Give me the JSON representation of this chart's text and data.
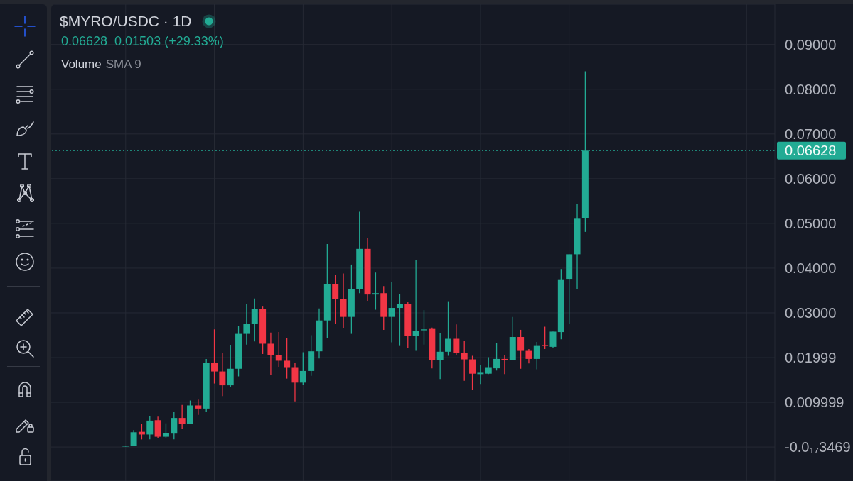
{
  "chart_data": {
    "type": "candlestick",
    "title": "$MYRO/USDC · 1D",
    "annotations": [
      "0.06628",
      "0.01503 (+29.33%)",
      "Volume",
      "SMA 9"
    ],
    "categories": [
      null,
      null,
      null,
      null,
      null,
      null,
      null,
      null,
      null,
      null,
      null,
      null,
      null,
      null,
      null,
      null,
      null,
      null,
      null,
      null,
      null,
      null,
      null,
      null,
      null,
      null,
      null,
      null,
      null,
      null,
      null,
      null,
      null,
      null,
      null,
      null,
      null,
      null,
      null,
      null,
      null,
      null,
      null,
      null,
      null,
      null,
      null,
      null,
      null,
      null,
      null,
      null,
      null,
      null,
      null,
      null,
      null,
      null,
      null,
      null,
      null,
      null,
      null,
      null,
      null,
      null,
      null,
      null,
      null,
      null,
      null,
      null,
      null,
      null,
      null,
      null,
      null,
      null,
      null,
      null,
      null,
      null,
      null,
      null,
      null,
      null,
      null,
      null,
      null,
      null
    ],
    "ohlc": [
      null,
      null,
      null,
      null,
      null,
      null,
      null,
      null,
      null,
      [
        0.0001,
        0.0003,
        0.0001,
        0.0003
      ],
      [
        0.0002,
        0.0038,
        0.0002,
        0.0033
      ],
      [
        0.0034,
        0.0052,
        0.0017,
        0.0028
      ],
      [
        0.0028,
        0.0069,
        0.0017,
        0.0059
      ],
      [
        0.006,
        0.0068,
        0.002,
        0.0023
      ],
      [
        0.0023,
        0.0053,
        0.0019,
        0.0031
      ],
      [
        0.003,
        0.0078,
        0.0017,
        0.0065
      ],
      [
        0.0065,
        0.0094,
        0.0041,
        0.0052
      ],
      [
        0.0052,
        0.0104,
        0.0051,
        0.0093
      ],
      [
        0.0093,
        0.0106,
        0.0072,
        0.0086
      ],
      [
        0.0086,
        0.0197,
        0.0078,
        0.0188
      ],
      [
        0.0188,
        0.0263,
        0.0142,
        0.0169
      ],
      [
        0.0169,
        0.0211,
        0.0114,
        0.0138
      ],
      [
        0.0138,
        0.0228,
        0.0135,
        0.0175
      ],
      [
        0.0175,
        0.0271,
        0.0158,
        0.0253
      ],
      [
        0.0253,
        0.0319,
        0.0229,
        0.0276
      ],
      [
        0.0276,
        0.0332,
        0.0236,
        0.0308
      ],
      [
        0.0308,
        0.0314,
        0.0208,
        0.0231
      ],
      [
        0.0231,
        0.0256,
        0.0162,
        0.0205
      ],
      [
        0.0205,
        0.0257,
        0.0178,
        0.0193
      ],
      [
        0.0193,
        0.0244,
        0.0153,
        0.0177
      ],
      [
        0.0177,
        0.0189,
        0.0102,
        0.0144
      ],
      [
        0.0144,
        0.0212,
        0.0138,
        0.017
      ],
      [
        0.017,
        0.025,
        0.0159,
        0.0214
      ],
      [
        0.0214,
        0.031,
        0.0198,
        0.0283
      ],
      [
        0.0283,
        0.0454,
        0.0244,
        0.0365
      ],
      [
        0.0365,
        0.0385,
        0.0276,
        0.0331
      ],
      [
        0.0331,
        0.0388,
        0.0266,
        0.0291
      ],
      [
        0.0291,
        0.0408,
        0.0253,
        0.0353
      ],
      [
        0.0353,
        0.0526,
        0.0344,
        0.0443
      ],
      [
        0.0443,
        0.0467,
        0.0327,
        0.0341
      ],
      [
        0.0341,
        0.039,
        0.0307,
        0.0344
      ],
      [
        0.0344,
        0.036,
        0.0262,
        0.0291
      ],
      [
        0.0291,
        0.0369,
        0.0234,
        0.0311
      ],
      [
        0.0311,
        0.0342,
        0.0226,
        0.0319
      ],
      [
        0.0319,
        0.0324,
        0.0221,
        0.0248
      ],
      [
        0.0248,
        0.0418,
        0.0215,
        0.026
      ],
      [
        0.0261,
        0.0306,
        0.0229,
        0.0263
      ],
      [
        0.0264,
        0.0267,
        0.0176,
        0.0194
      ],
      [
        0.0194,
        0.0255,
        0.0152,
        0.0213
      ],
      [
        0.0213,
        0.0326,
        0.0204,
        0.0242
      ],
      [
        0.0242,
        0.0274,
        0.0206,
        0.0211
      ],
      [
        0.0211,
        0.0238,
        0.0148,
        0.0196
      ],
      [
        0.0196,
        0.0204,
        0.0127,
        0.0164
      ],
      [
        0.0163,
        0.0183,
        0.0141,
        0.0166
      ],
      [
        0.0164,
        0.0201,
        0.0163,
        0.0177
      ],
      [
        0.0176,
        0.0233,
        0.0171,
        0.0197
      ],
      [
        0.0197,
        0.0205,
        0.0163,
        0.0195
      ],
      [
        0.0195,
        0.0291,
        0.0194,
        0.0246
      ],
      [
        0.0246,
        0.0262,
        0.0175,
        0.0215
      ],
      [
        0.0215,
        0.0219,
        0.0187,
        0.0197
      ],
      [
        0.0197,
        0.0235,
        0.0174,
        0.0226
      ],
      [
        0.0228,
        0.0269,
        0.0219,
        0.0226
      ],
      [
        0.0224,
        0.0258,
        0.0222,
        0.0258
      ],
      [
        0.0257,
        0.0398,
        0.0241,
        0.0375
      ],
      [
        0.0376,
        0.0431,
        0.0275,
        0.0431
      ],
      [
        0.0431,
        0.0543,
        0.0354,
        0.0512
      ],
      [
        0.05125,
        0.084,
        0.0481,
        0.06628
      ],
      null,
      null,
      null,
      null,
      null,
      null,
      null,
      null,
      null,
      null,
      null,
      null,
      null,
      null,
      null,
      null,
      null,
      null,
      null,
      null,
      null,
      null,
      null
    ],
    "colors": [
      null,
      null,
      null,
      null,
      null,
      null,
      null,
      null,
      null,
      "#22ab94",
      "#22ab94",
      "#f23645",
      "#22ab94",
      "#f23645",
      "#22ab94",
      "#22ab94",
      "#f23645",
      "#22ab94",
      "#f23645",
      "#22ab94",
      "#f23645",
      "#f23645",
      "#22ab94",
      "#22ab94",
      "#22ab94",
      "#22ab94",
      "#f23645",
      "#f23645",
      "#f23645",
      "#f23645",
      "#f23645",
      "#22ab94",
      "#22ab94",
      "#22ab94",
      "#22ab94",
      "#f23645",
      "#f23645",
      "#22ab94",
      "#22ab94",
      "#f23645",
      "#22ab94",
      "#f23645",
      "#22ab94",
      "#22ab94",
      "#f23645",
      "#22ab94",
      "#22ab94",
      "#f23645",
      "#22ab94",
      "#22ab94",
      "#f23645",
      "#f23645",
      "#f23645",
      "#22ab94",
      "#22ab94",
      "#22ab94",
      "#f23645",
      "#22ab94",
      "#f23645",
      "#f23645",
      "#22ab94",
      "#f23645",
      "#22ab94",
      "#22ab94",
      "#22ab94",
      "#22ab94",
      "#22ab94",
      null,
      null,
      null,
      null,
      null,
      null,
      null,
      null,
      null,
      null,
      null,
      null,
      null,
      null,
      null,
      null,
      null,
      null,
      null,
      null,
      null,
      null,
      null
    ],
    "ylim": [
      -0.0076,
      0.099
    ],
    "yticks": [
      {
        "value": 0.09,
        "label": "0.09000"
      },
      {
        "value": 0.08,
        "label": "0.08000"
      },
      {
        "value": 0.07,
        "label": "0.07000"
      },
      {
        "value": 0.06,
        "label": "0.06000"
      },
      {
        "value": 0.05,
        "label": "0.05000"
      },
      {
        "value": 0.04,
        "label": "0.04000"
      },
      {
        "value": 0.03,
        "label": "0.03000"
      },
      0.01999,
      0.009999,
      {
        "value": 0,
        "label": "-0.0₁₇3469"
      }
    ],
    "grid": true,
    "tick_labels": "y",
    "ref_lines": [
      {
        "axis": "y",
        "value": 0.06628,
        "label": "0.06628",
        "color": "#22ab94",
        "line_style": "dotted"
      }
    ]
  }
}
